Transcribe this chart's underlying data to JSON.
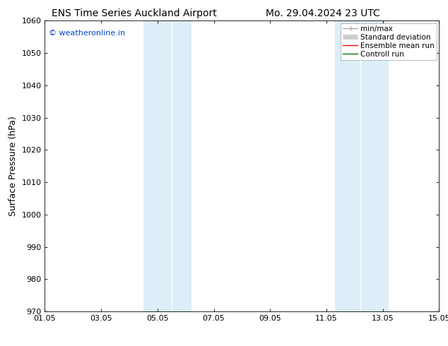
{
  "title_left": "ENS Time Series Auckland Airport",
  "title_right": "Mo. 29.04.2024 23 UTC",
  "ylabel": "Surface Pressure (hPa)",
  "watermark": "© weatheronline.in",
  "watermark_color": "#0044cc",
  "ylim": [
    970,
    1060
  ],
  "yticks": [
    970,
    980,
    990,
    1000,
    1010,
    1020,
    1030,
    1040,
    1050,
    1060
  ],
  "xtick_labels": [
    "01.05",
    "03.05",
    "05.05",
    "07.05",
    "09.05",
    "11.05",
    "13.05",
    "15.05"
  ],
  "xtick_positions": [
    0,
    2,
    4,
    6,
    8,
    10,
    12,
    14
  ],
  "xlim": [
    0,
    14
  ],
  "shaded_bands": [
    {
      "x_start": 3.5,
      "x_end": 4.5,
      "color": "#ddeef8"
    },
    {
      "x_start": 4.5,
      "x_end": 5.2,
      "color": "#ddeef8"
    },
    {
      "x_start": 10.3,
      "x_end": 11.2,
      "color": "#ddeef8"
    },
    {
      "x_start": 11.2,
      "x_end": 12.2,
      "color": "#ddeef8"
    }
  ],
  "legend_entries": [
    {
      "label": "min/max",
      "color": "#aaaaaa",
      "lw": 1.0,
      "style": "minmax"
    },
    {
      "label": "Standard deviation",
      "color": "#cccccc",
      "lw": 5,
      "style": "thick"
    },
    {
      "label": "Ensemble mean run",
      "color": "#ff0000",
      "lw": 1.0,
      "style": "line"
    },
    {
      "label": "Controll run",
      "color": "#008000",
      "lw": 1.0,
      "style": "line"
    }
  ],
  "bg_color": "#ffffff",
  "plot_bg_color": "#ffffff",
  "title_fontsize": 10,
  "tick_fontsize": 8,
  "ylabel_fontsize": 9,
  "watermark_fontsize": 8,
  "legend_fontsize": 7.5
}
